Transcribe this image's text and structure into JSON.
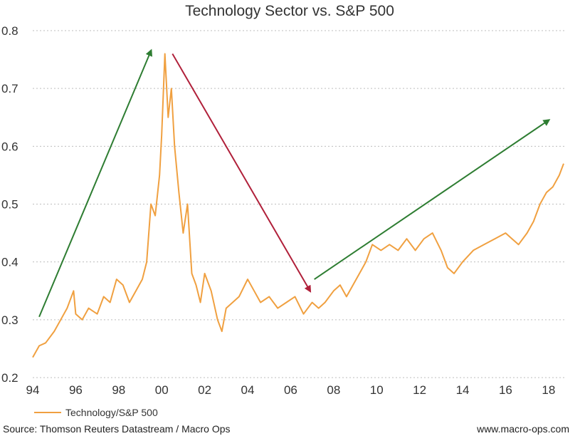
{
  "chart_data": {
    "type": "line",
    "title": "Technology Sector vs. S&P 500",
    "xlabel": "",
    "ylabel": "",
    "xlim": [
      1994,
      2018.8
    ],
    "ylim": [
      0.2,
      0.8
    ],
    "y_ticks": [
      0.2,
      0.3,
      0.4,
      0.5,
      0.6,
      0.7,
      0.8
    ],
    "y_tick_labels": [
      "0.2",
      "0.3",
      "0.4",
      "0.5",
      "0.6",
      "0.7",
      "0.8"
    ],
    "x_ticks": [
      1994,
      1996,
      1998,
      2000,
      2002,
      2004,
      2006,
      2008,
      2010,
      2012,
      2014,
      2016,
      2018
    ],
    "x_tick_labels": [
      "94",
      "96",
      "98",
      "00",
      "02",
      "04",
      "06",
      "08",
      "10",
      "12",
      "14",
      "16",
      "18"
    ],
    "grid": true,
    "legend_position": "bottom-left",
    "series": [
      {
        "name": "Technology/S&P 500",
        "color": "#f0a040",
        "x": [
          1994.0,
          1994.3,
          1994.6,
          1995.0,
          1995.3,
          1995.6,
          1995.9,
          1996.0,
          1996.3,
          1996.6,
          1997.0,
          1997.3,
          1997.6,
          1997.9,
          1998.2,
          1998.5,
          1998.8,
          1999.1,
          1999.3,
          1999.5,
          1999.7,
          1999.9,
          2000.0,
          2000.15,
          2000.3,
          2000.45,
          2000.6,
          2000.8,
          2001.0,
          2001.2,
          2001.4,
          2001.6,
          2001.8,
          2002.0,
          2002.3,
          2002.6,
          2002.8,
          2003.0,
          2003.3,
          2003.6,
          2004.0,
          2004.3,
          2004.6,
          2005.0,
          2005.4,
          2005.8,
          2006.2,
          2006.6,
          2007.0,
          2007.3,
          2007.6,
          2008.0,
          2008.3,
          2008.6,
          2008.9,
          2009.2,
          2009.5,
          2009.8,
          2010.2,
          2010.6,
          2011.0,
          2011.4,
          2011.8,
          2012.2,
          2012.6,
          2013.0,
          2013.3,
          2013.6,
          2014.0,
          2014.5,
          2015.0,
          2015.5,
          2016.0,
          2016.3,
          2016.6,
          2017.0,
          2017.3,
          2017.6,
          2017.9,
          2018.2,
          2018.5,
          2018.7
        ],
        "values": [
          0.235,
          0.255,
          0.26,
          0.28,
          0.3,
          0.32,
          0.35,
          0.31,
          0.3,
          0.32,
          0.31,
          0.34,
          0.33,
          0.37,
          0.36,
          0.33,
          0.35,
          0.37,
          0.4,
          0.5,
          0.48,
          0.55,
          0.62,
          0.76,
          0.65,
          0.7,
          0.6,
          0.52,
          0.45,
          0.5,
          0.38,
          0.36,
          0.33,
          0.38,
          0.35,
          0.3,
          0.28,
          0.32,
          0.33,
          0.34,
          0.37,
          0.35,
          0.33,
          0.34,
          0.32,
          0.33,
          0.34,
          0.31,
          0.33,
          0.32,
          0.33,
          0.35,
          0.36,
          0.34,
          0.36,
          0.38,
          0.4,
          0.43,
          0.42,
          0.43,
          0.42,
          0.44,
          0.42,
          0.44,
          0.45,
          0.42,
          0.39,
          0.38,
          0.4,
          0.42,
          0.43,
          0.44,
          0.45,
          0.44,
          0.43,
          0.45,
          0.47,
          0.5,
          0.52,
          0.53,
          0.55,
          0.57
        ]
      }
    ],
    "annotations": [
      {
        "type": "arrow",
        "color": "#2e7d32",
        "from": [
          1994.3,
          0.305
        ],
        "to": [
          1999.5,
          0.765
        ]
      },
      {
        "type": "arrow",
        "color": "#b0203a",
        "from": [
          2000.5,
          0.76
        ],
        "to": [
          2006.9,
          0.35
        ]
      },
      {
        "type": "arrow",
        "color": "#2e7d32",
        "from": [
          2007.1,
          0.37
        ],
        "to": [
          2018.0,
          0.645
        ]
      }
    ]
  },
  "footer": {
    "source": "Source: Thomson Reuters Datastream / Macro Ops",
    "website": "www.macro-ops.com"
  }
}
